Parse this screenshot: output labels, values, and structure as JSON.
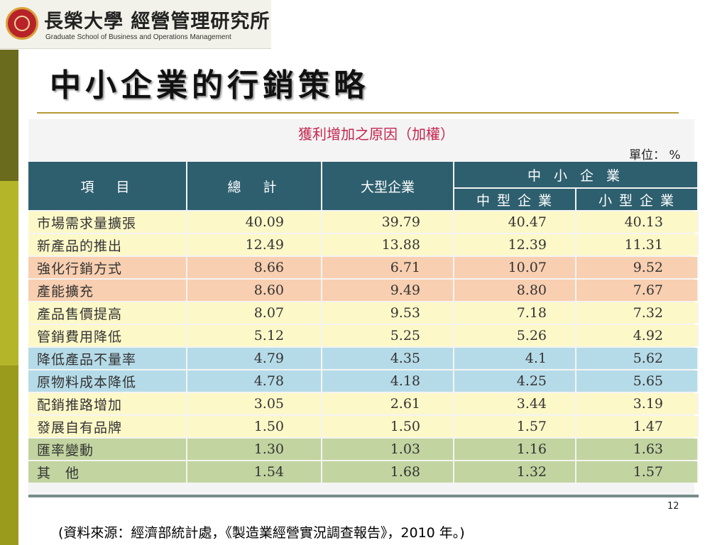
{
  "logo": {
    "chinese": "長榮大學 經營管理研究所",
    "english": "Graduate School of Business and Operations Management"
  },
  "title": "中小企業的行銷策略",
  "table": {
    "subtitle": "獲利增加之原因（加權）",
    "unit": "單位： %",
    "headers": {
      "item": "項　目",
      "total": "總　計",
      "large": "大型企業",
      "sme": "中 小 企 業",
      "medium": "中 型 企 業",
      "small": "小 型 企 業"
    },
    "rows": [
      {
        "item": "市場需求量擴張",
        "total": "40.09",
        "large": "39.79",
        "medium": "40.47",
        "small": "40.13",
        "band": "yellow"
      },
      {
        "item": "新產品的推出",
        "total": "12.49",
        "large": "13.88",
        "medium": "12.39",
        "small": "11.31",
        "band": "yellow"
      },
      {
        "item": "強化行銷方式",
        "total": "8.66",
        "large": "6.71",
        "medium": "10.07",
        "small": "9.52",
        "band": "salmon"
      },
      {
        "item": "產能擴充",
        "total": "8.60",
        "large": "9.49",
        "medium": "8.80",
        "small": "7.67",
        "band": "salmon"
      },
      {
        "item": "產品售價提高",
        "total": "8.07",
        "large": "9.53",
        "medium": "7.18",
        "small": "7.32",
        "band": "yellow"
      },
      {
        "item": "管銷費用降低",
        "total": "5.12",
        "large": "5.25",
        "medium": "5.26",
        "small": "4.92",
        "band": "yellow"
      },
      {
        "item": "降低產品不量率",
        "total": "4.79",
        "large": "4.35",
        "medium": "4.1",
        "small": "5.62",
        "band": "blue"
      },
      {
        "item": "原物料成本降低",
        "total": "4.78",
        "large": "4.18",
        "medium": "4.25",
        "small": "5.65",
        "band": "blue"
      },
      {
        "item": "配銷推路增加",
        "total": "3.05",
        "large": "2.61",
        "medium": "3.44",
        "small": "3.19",
        "band": "yellow"
      },
      {
        "item": "發展自有品牌",
        "total": "1.50",
        "large": "1.50",
        "medium": "1.57",
        "small": "1.47",
        "band": "yellow"
      },
      {
        "item": "匯率變動",
        "total": "1.30",
        "large": "1.03",
        "medium": "1.16",
        "small": "1.63",
        "band": "green"
      },
      {
        "item": "其　他",
        "total": "1.54",
        "large": "1.68",
        "medium": "1.32",
        "small": "1.57",
        "band": "green"
      }
    ]
  },
  "page_number": "12",
  "source": "(資料來源：經濟部統計處，《製造業經營實況調查報告》，2010 年。)"
}
